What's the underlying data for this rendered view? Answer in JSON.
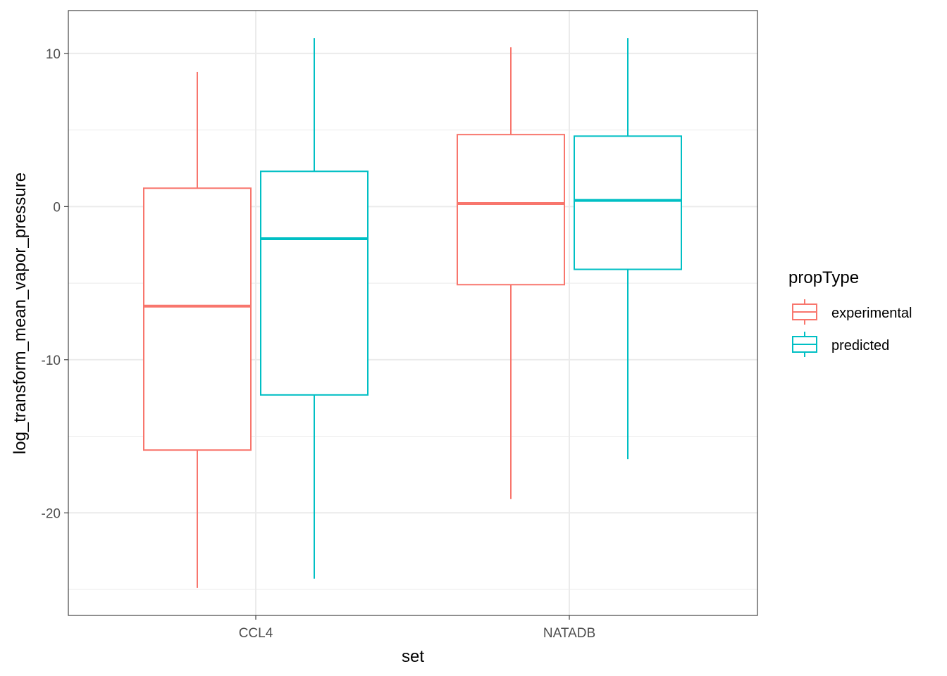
{
  "chart_data": {
    "type": "boxplot",
    "title": "",
    "xlabel": "set",
    "ylabel": "log_transform_mean_vapor_pressure",
    "categories": [
      "CCL4",
      "NATADB"
    ],
    "ylim": [
      -26.7,
      12.8
    ],
    "yticks": [
      10,
      0,
      -10,
      -20
    ],
    "ytick_labels": [
      "10",
      "0",
      "-10",
      "-20"
    ],
    "grid": true,
    "legend": {
      "title": "propType",
      "position": "right",
      "entries": [
        "experimental",
        "predicted"
      ]
    },
    "series": [
      {
        "name": "experimental",
        "color": "#F8766D",
        "boxes": [
          {
            "category": "CCL4",
            "whisker_low": -24.9,
            "q1": -15.9,
            "median": -6.5,
            "q3": 1.2,
            "whisker_high": 8.8
          },
          {
            "category": "NATADB",
            "whisker_low": -19.1,
            "q1": -5.1,
            "median": 0.2,
            "q3": 4.7,
            "whisker_high": 10.4
          }
        ]
      },
      {
        "name": "predicted",
        "color": "#00BFC4",
        "boxes": [
          {
            "category": "CCL4",
            "whisker_low": -24.3,
            "q1": -12.3,
            "median": -2.1,
            "q3": 2.3,
            "whisker_high": 11.0
          },
          {
            "category": "NATADB",
            "whisker_low": -16.5,
            "q1": -4.1,
            "median": 0.4,
            "q3": 4.6,
            "whisker_high": 11.0
          }
        ]
      }
    ]
  }
}
